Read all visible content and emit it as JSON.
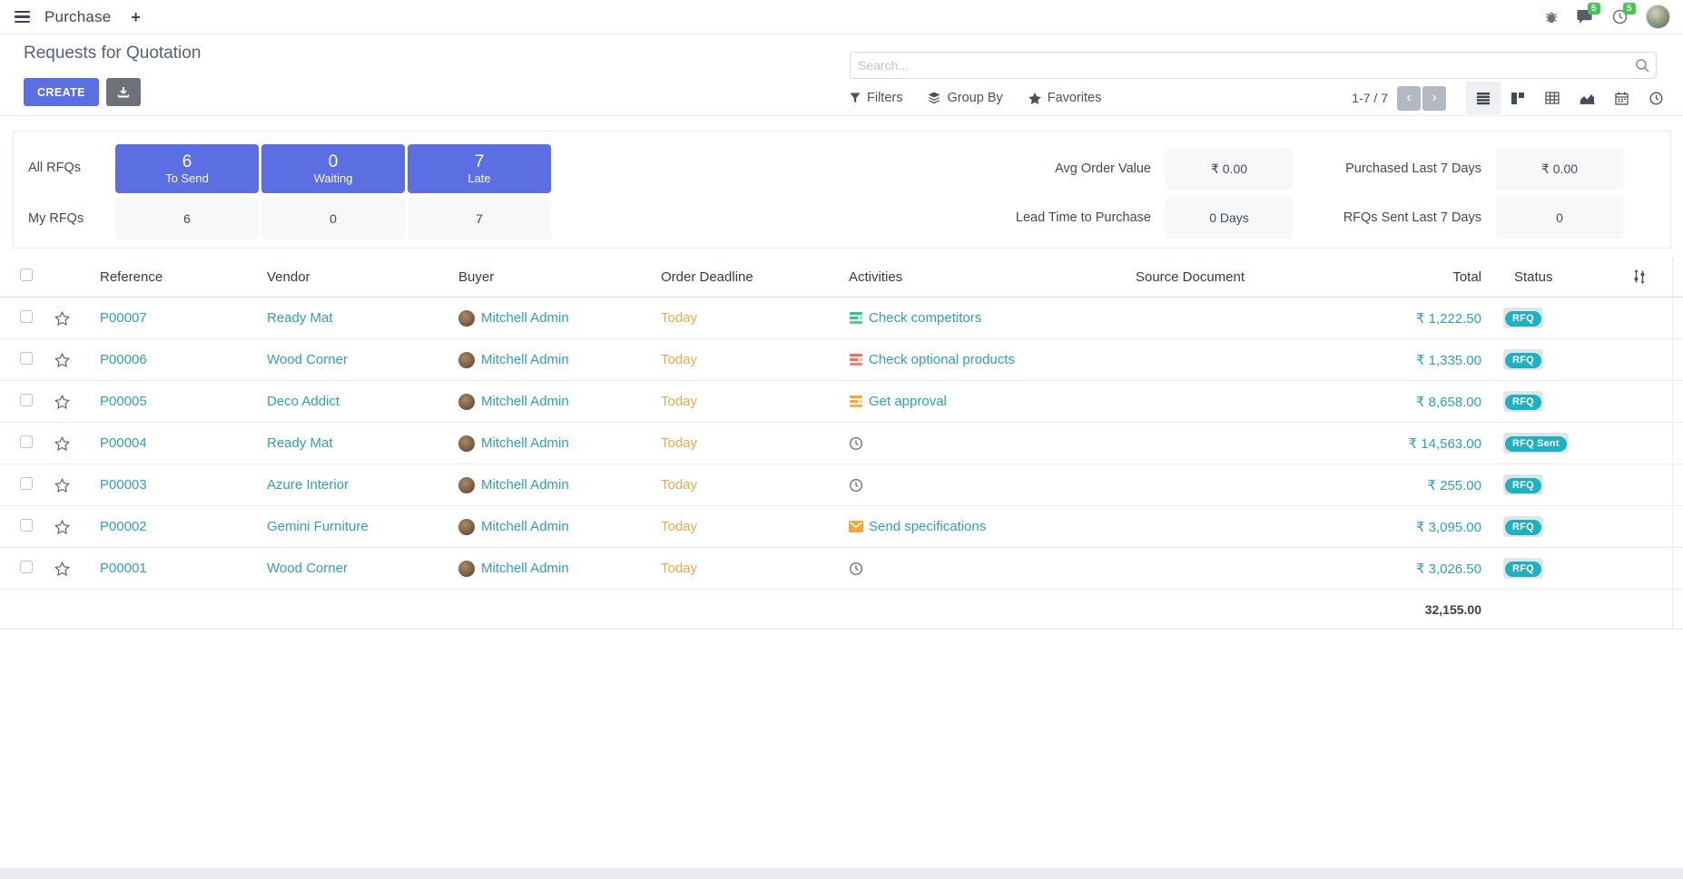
{
  "colors": {
    "primary": "#5b6fe3",
    "link": "#2e9fb6",
    "badge_info": "#1fb0c2",
    "deadline_warning": "#e9a84c",
    "badge_success": "#46c556"
  },
  "navbar": {
    "app_name": "Purchase",
    "plus_label": "+",
    "messages_badge": "5",
    "activities_badge": "5"
  },
  "control_panel": {
    "title": "Requests for Quotation",
    "create_label": "CREATE",
    "search_placeholder": "Search...",
    "filters_label": "Filters",
    "group_by_label": "Group By",
    "favorites_label": "Favorites",
    "pager": "1-7 / 7",
    "views": [
      "list",
      "kanban",
      "pivot",
      "graph",
      "calendar",
      "activity"
    ],
    "active_view": "list"
  },
  "dashboard": {
    "rows": [
      {
        "label": "All RFQs",
        "cells": [
          {
            "value": "6",
            "sub": "To Send"
          },
          {
            "value": "0",
            "sub": "Waiting"
          },
          {
            "value": "7",
            "sub": "Late"
          }
        ]
      },
      {
        "label": "My RFQs",
        "cells": [
          {
            "value": "6"
          },
          {
            "value": "0"
          },
          {
            "value": "7"
          }
        ]
      }
    ],
    "stats": [
      {
        "label": "Avg Order Value",
        "value": "₹ 0.00"
      },
      {
        "label": "Lead Time to Purchase",
        "value": "0 Days"
      },
      {
        "label": "Purchased Last 7 Days",
        "value": "₹ 0.00"
      },
      {
        "label": "RFQs Sent Last 7 Days",
        "value": "0"
      }
    ]
  },
  "table": {
    "columns": [
      "Reference",
      "Vendor",
      "Buyer",
      "Order Deadline",
      "Activities",
      "Source Document",
      "Total",
      "Status"
    ],
    "rows": [
      {
        "reference": "P00007",
        "vendor": "Ready Mat",
        "buyer": "Mitchell Admin",
        "deadline": "Today",
        "activity": "Check competitors",
        "activity_icon": "tasks-green",
        "source": "",
        "total": "₹ 1,222.50",
        "status": "RFQ"
      },
      {
        "reference": "P00006",
        "vendor": "Wood Corner",
        "buyer": "Mitchell Admin",
        "deadline": "Today",
        "activity": "Check optional products",
        "activity_icon": "tasks-red",
        "source": "",
        "total": "₹ 1,335.00",
        "status": "RFQ"
      },
      {
        "reference": "P00005",
        "vendor": "Deco Addict",
        "buyer": "Mitchell Admin",
        "deadline": "Today",
        "activity": "Get approval",
        "activity_icon": "tasks-yellow",
        "source": "",
        "total": "₹ 8,658.00",
        "status": "RFQ"
      },
      {
        "reference": "P00004",
        "vendor": "Ready Mat",
        "buyer": "Mitchell Admin",
        "deadline": "Today",
        "activity": "",
        "activity_icon": "clock",
        "source": "",
        "total": "₹ 14,563.00",
        "status": "RFQ Sent"
      },
      {
        "reference": "P00003",
        "vendor": "Azure Interior",
        "buyer": "Mitchell Admin",
        "deadline": "Today",
        "activity": "",
        "activity_icon": "clock",
        "source": "",
        "total": "₹ 255.00",
        "status": "RFQ"
      },
      {
        "reference": "P00002",
        "vendor": "Gemini Furniture",
        "buyer": "Mitchell Admin",
        "deadline": "Today",
        "activity": "Send specifications",
        "activity_icon": "envelope",
        "source": "",
        "total": "₹ 3,095.00",
        "status": "RFQ"
      },
      {
        "reference": "P00001",
        "vendor": "Wood Corner",
        "buyer": "Mitchell Admin",
        "deadline": "Today",
        "activity": "",
        "activity_icon": "clock",
        "source": "",
        "total": "₹ 3,026.50",
        "status": "RFQ"
      }
    ],
    "footer_total": "32,155.00"
  }
}
